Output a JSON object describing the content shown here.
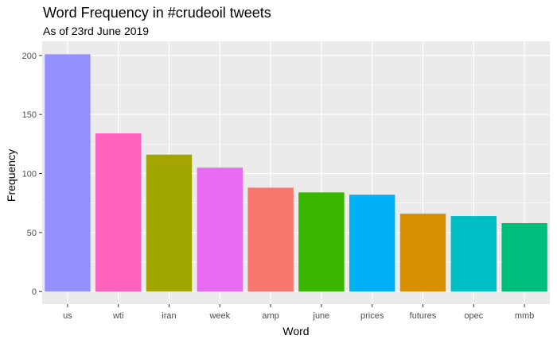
{
  "chart_data": {
    "type": "bar",
    "title": "Word Frequency in #crudeoil tweets",
    "subtitle": "As of 23rd June 2019",
    "xlabel": "Word",
    "ylabel": "Frequency",
    "categories": [
      "us",
      "wti",
      "iran",
      "week",
      "amp",
      "june",
      "prices",
      "futures",
      "opec",
      "mmb"
    ],
    "values": [
      201,
      134,
      116,
      105,
      88,
      84,
      82,
      66,
      64,
      58
    ],
    "colors": [
      "#9590FF",
      "#FF62BC",
      "#A3A500",
      "#E76BF3",
      "#F8766D",
      "#39B600",
      "#00B0F6",
      "#D89000",
      "#00BFC4",
      "#00BF7D"
    ],
    "ylim": [
      0,
      212
    ],
    "yticks": [
      0,
      50,
      100,
      150,
      200
    ],
    "grid": true,
    "legend": "none",
    "panel_background": "#EBEBEB",
    "grid_color": "#FFFFFF"
  }
}
